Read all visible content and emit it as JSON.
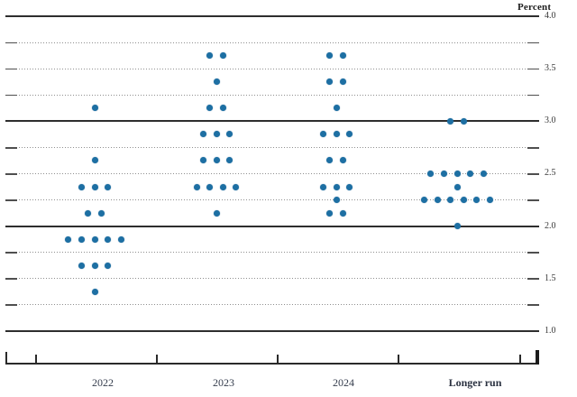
{
  "chart_data": {
    "type": "scatter",
    "title": "",
    "xlabel": "",
    "ylabel": "Percent",
    "ylim": [
      1.0,
      4.0
    ],
    "grid": "horizontal",
    "legend": "none",
    "dot_color": "#1d6fa3",
    "y_axis": {
      "unit_label": "Percent",
      "tick_labels": [
        "4.0",
        "3.5",
        "3.0",
        "2.5",
        "2.0",
        "1.5",
        "1.0"
      ],
      "tick_values": [
        4.0,
        3.5,
        3.0,
        2.5,
        2.0,
        1.5,
        1.0
      ],
      "solid_line_values": [
        4.0,
        3.0,
        2.0,
        1.0
      ],
      "dotted_line_values": [
        3.75,
        3.5,
        3.25,
        2.75,
        2.5,
        2.25,
        1.75,
        1.5,
        1.25
      ]
    },
    "categories": [
      "2022",
      "2023",
      "2024",
      "Longer run"
    ],
    "series": [
      {
        "name": "2022",
        "distribution": [
          {
            "rate": 3.125,
            "count": 1
          },
          {
            "rate": 2.625,
            "count": 1
          },
          {
            "rate": 2.375,
            "count": 3
          },
          {
            "rate": 2.125,
            "count": 2
          },
          {
            "rate": 1.875,
            "count": 5
          },
          {
            "rate": 1.625,
            "count": 3
          },
          {
            "rate": 1.375,
            "count": 1
          }
        ]
      },
      {
        "name": "2023",
        "distribution": [
          {
            "rate": 3.625,
            "count": 2
          },
          {
            "rate": 3.375,
            "count": 1
          },
          {
            "rate": 3.125,
            "count": 2
          },
          {
            "rate": 2.875,
            "count": 3
          },
          {
            "rate": 2.625,
            "count": 3
          },
          {
            "rate": 2.375,
            "count": 4
          },
          {
            "rate": 2.125,
            "count": 1
          }
        ]
      },
      {
        "name": "2024",
        "distribution": [
          {
            "rate": 3.625,
            "count": 2
          },
          {
            "rate": 3.375,
            "count": 2
          },
          {
            "rate": 3.125,
            "count": 1
          },
          {
            "rate": 2.875,
            "count": 3
          },
          {
            "rate": 2.625,
            "count": 2
          },
          {
            "rate": 2.375,
            "count": 3
          },
          {
            "rate": 2.25,
            "count": 1
          },
          {
            "rate": 2.125,
            "count": 2
          }
        ]
      },
      {
        "name": "Longer run",
        "distribution": [
          {
            "rate": 3.0,
            "count": 2
          },
          {
            "rate": 2.5,
            "count": 5
          },
          {
            "rate": 2.375,
            "count": 1
          },
          {
            "rate": 2.25,
            "count": 6
          },
          {
            "rate": 2.0,
            "count": 1
          }
        ]
      }
    ]
  }
}
